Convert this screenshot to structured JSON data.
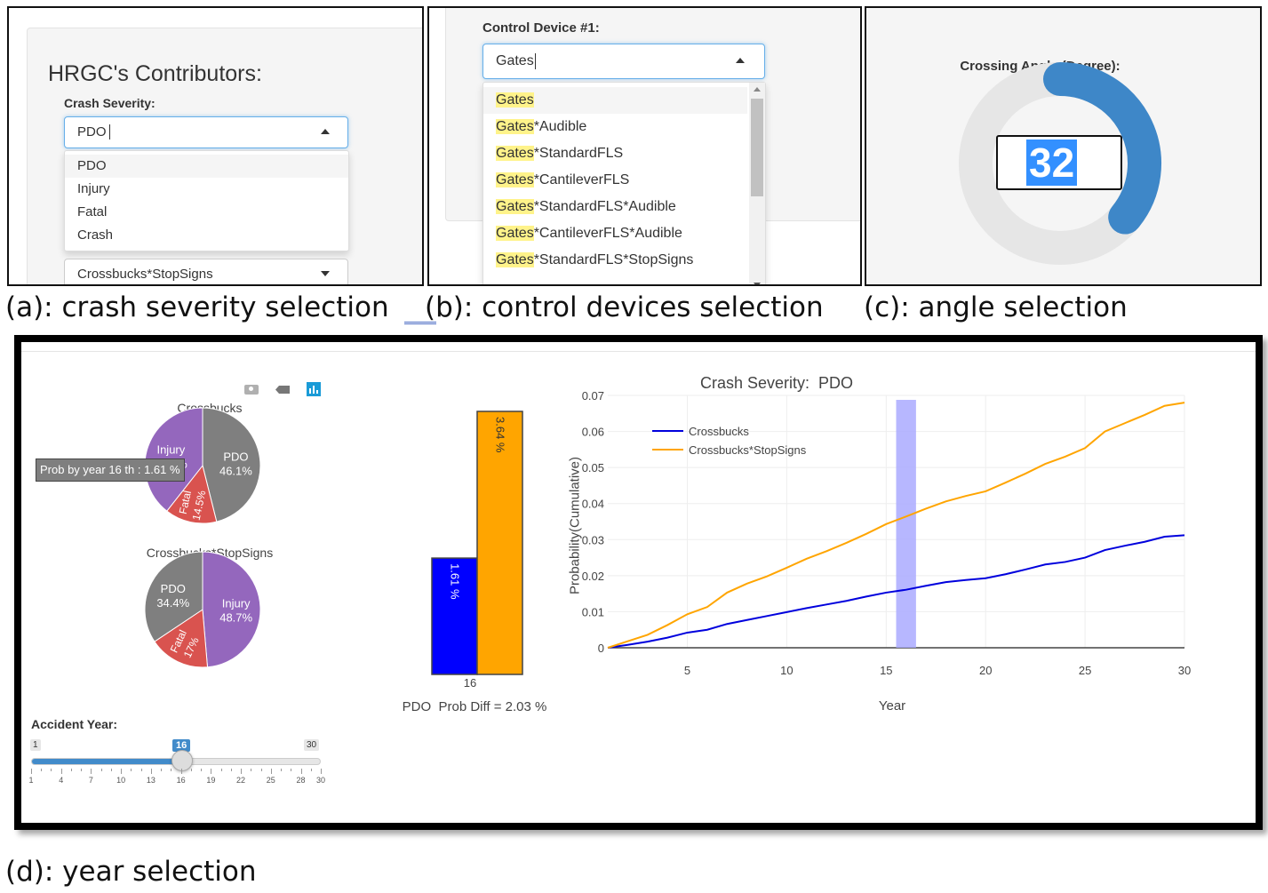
{
  "panel_a": {
    "title": "HRGC's Contributors:",
    "crash_severity_label": "Crash Severity:",
    "select_value": "PDO",
    "options": [
      "PDO",
      "Injury",
      "Fatal",
      "Crash"
    ],
    "second_select_value": "Crossbucks*StopSigns"
  },
  "panel_b": {
    "label": "Control Device #1:",
    "input_value": "Gates",
    "options": [
      {
        "match": "Gates",
        "rest": ""
      },
      {
        "match": "Gates",
        "rest": "*Audible"
      },
      {
        "match": "Gates",
        "rest": "*StandardFLS"
      },
      {
        "match": "Gates",
        "rest": "*CantileverFLS"
      },
      {
        "match": "Gates",
        "rest": "*StandardFLS*Audible"
      },
      {
        "match": "Gates",
        "rest": "*CantileverFLS*Audible"
      },
      {
        "match": "Gates",
        "rest": "*StandardFLS*StopSigns"
      }
    ]
  },
  "panel_c": {
    "label": "Crossing Angle (Degree):",
    "value": "32",
    "knob_fraction": 0.36
  },
  "captions": {
    "a": "(a): crash severity selection",
    "b": "(b): control devices selection",
    "c": "(c): angle selection",
    "d": "(d): year selection"
  },
  "panel_d": {
    "toolbar_icons": [
      "camera-icon",
      "tag-icon",
      "bar-chart-icon"
    ],
    "pie_top": {
      "title": "Crossbucks",
      "tooltip": "Prob by year  16 th : 1.61 %",
      "slices": [
        {
          "label": "PDO",
          "pct": "46.1%",
          "value": 46.1,
          "color": "#7f7f7f"
        },
        {
          "label": "Fatal",
          "pct": "14.5%",
          "value": 14.5,
          "color": "#d9534f"
        },
        {
          "label": "Injury",
          "pct": "39.4%",
          "value": 39.4,
          "color": "#9467bd"
        }
      ],
      "partial_injury_label": "Injury"
    },
    "pie_bottom": {
      "title": "Crossbucks*StopSigns",
      "slices": [
        {
          "label": "Injury",
          "pct": "48.7%",
          "value": 48.7,
          "color": "#9467bd"
        },
        {
          "label": "Fatal",
          "pct": "17%",
          "value": 17.0,
          "color": "#d9534f"
        },
        {
          "label": "PDO",
          "pct": "34.4%",
          "value": 34.4,
          "color": "#7f7f7f"
        }
      ]
    },
    "slider": {
      "label": "Accident Year:",
      "min": 1,
      "max": 30,
      "value": 16,
      "min_label": "1",
      "max_label": "30",
      "value_label": "16",
      "ticks": [
        "1",
        "4",
        "7",
        "10",
        "13",
        "16",
        "19",
        "22",
        "25",
        "28",
        "30"
      ]
    },
    "bar": {
      "category": "16",
      "bars": [
        {
          "label": "1.61 %",
          "value": 1.61,
          "color": "#0000ff"
        },
        {
          "label": "3.64 %",
          "value": 3.64,
          "color": "#ffa500"
        }
      ],
      "caption": "PDO  Prob Diff = 2.03 %"
    }
  },
  "chart_data": {
    "type": "line",
    "title": "Crash Severity:  PDO",
    "xlabel": "Year",
    "ylabel": "Probability(Cumulative)",
    "xlim": [
      1,
      30
    ],
    "ylim": [
      0,
      0.07
    ],
    "xticks": [
      "5",
      "10",
      "15",
      "20",
      "25",
      "30"
    ],
    "yticks": [
      "0",
      "0.01",
      "0.02",
      "0.03",
      "0.04",
      "0.05",
      "0.06",
      "0.07"
    ],
    "legend_position": "top-left",
    "highlight": {
      "x_from": 15.5,
      "x_to": 16.5,
      "color": "#aaaaff"
    },
    "grid": true,
    "series": [
      {
        "name": "Crossbucks",
        "color": "#0000dd",
        "x": [
          1,
          2,
          3,
          4,
          5,
          6,
          7,
          8,
          9,
          10,
          11,
          12,
          13,
          14,
          15,
          16,
          17,
          18,
          19,
          20,
          21,
          22,
          23,
          24,
          25,
          26,
          27,
          28,
          29,
          30
        ],
        "values": [
          0,
          0.0008,
          0.0017,
          0.0028,
          0.0042,
          0.005,
          0.0066,
          0.0077,
          0.0088,
          0.0099,
          0.011,
          0.012,
          0.013,
          0.0142,
          0.0153,
          0.0161,
          0.0172,
          0.0182,
          0.0188,
          0.0193,
          0.0204,
          0.0217,
          0.0231,
          0.0238,
          0.025,
          0.0271,
          0.0283,
          0.0294,
          0.0308,
          0.0312
        ]
      },
      {
        "name": "Crossbucks*StopSigns",
        "color": "#ffa500",
        "x": [
          1,
          2,
          3,
          4,
          5,
          6,
          7,
          8,
          9,
          10,
          11,
          12,
          13,
          14,
          15,
          16,
          17,
          18,
          19,
          20,
          21,
          22,
          23,
          24,
          25,
          26,
          27,
          28,
          29,
          30
        ],
        "values": [
          0,
          0.0018,
          0.0036,
          0.0063,
          0.0093,
          0.0113,
          0.0153,
          0.0178,
          0.0198,
          0.0222,
          0.0247,
          0.0268,
          0.0291,
          0.0316,
          0.0343,
          0.0364,
          0.0386,
          0.0406,
          0.0421,
          0.0434,
          0.0458,
          0.0483,
          0.051,
          0.053,
          0.0554,
          0.06,
          0.0623,
          0.0646,
          0.0671,
          0.068
        ]
      }
    ]
  }
}
